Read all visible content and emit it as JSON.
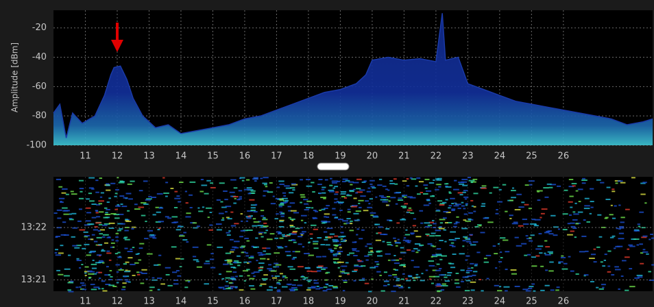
{
  "chart_data": [
    {
      "type": "area",
      "y_label": "Amplitude [dBm]",
      "x": [
        10.0,
        10.2,
        10.4,
        10.6,
        10.9,
        11.3,
        11.6,
        11.8,
        11.9,
        12.1,
        12.3,
        12.5,
        12.8,
        13.2,
        13.6,
        14.0,
        14.5,
        15.0,
        15.5,
        16.0,
        16.5,
        17.0,
        17.5,
        18.0,
        18.5,
        19.0,
        19.5,
        19.8,
        20.0,
        20.5,
        21.0,
        21.5,
        22.0,
        22.2,
        22.3,
        22.7,
        23.0,
        23.5,
        24.0,
        24.5,
        25.0,
        25.5,
        26.0,
        26.5,
        27.0,
        27.5,
        28.0,
        28.5,
        28.8
      ],
      "values": [
        -78,
        -72,
        -95,
        -78,
        -85,
        -80,
        -66,
        -52,
        -47,
        -46,
        -55,
        -68,
        -80,
        -88,
        -86,
        -92,
        -90,
        -88,
        -86,
        -82,
        -80,
        -76,
        -72,
        -68,
        -64,
        -62,
        -58,
        -52,
        -42,
        -40,
        -42,
        -41,
        -43,
        -10,
        -42,
        -40,
        -58,
        -62,
        -66,
        -70,
        -72,
        -74,
        -76,
        -78,
        -80,
        -82,
        -86,
        -84,
        -82
      ],
      "xlim": [
        10,
        28.8
      ],
      "ylim": [
        -100,
        -8
      ],
      "xticks": [
        11,
        12,
        13,
        14,
        15,
        16,
        17,
        18,
        19,
        20,
        21,
        22,
        23,
        24,
        25,
        26
      ],
      "yticks": [
        -20,
        -40,
        -60,
        -80,
        -100
      ],
      "grid": true,
      "color": "#1a3aa8",
      "marker": {
        "x": 12,
        "color": "#e00000"
      }
    },
    {
      "type": "heatmap",
      "xlim": [
        10,
        28.8
      ],
      "ylim": [
        "13:20:47",
        "13:22:58"
      ],
      "xticks": [
        11,
        12,
        13,
        14,
        15,
        16,
        17,
        18,
        19,
        20,
        21,
        22,
        23,
        24,
        25,
        26
      ],
      "yticks": [
        "13:22",
        "13:21"
      ],
      "grid": true
    }
  ]
}
